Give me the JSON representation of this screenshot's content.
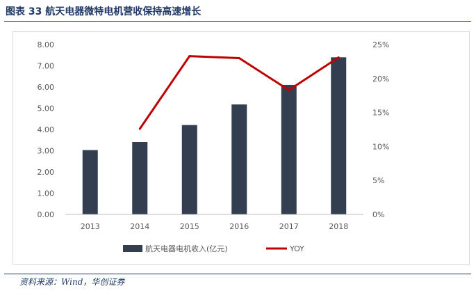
{
  "header": {
    "title": "图表 33  航天电器微特电机营收保持高速增长"
  },
  "footer": {
    "source": "资料来源：Wind，华创证券"
  },
  "chart_data": {
    "type": "bar",
    "categories": [
      "2013",
      "2014",
      "2015",
      "2016",
      "2017",
      "2018"
    ],
    "series": [
      {
        "name": "航天电器电机收入(亿元)",
        "type": "bar",
        "axis": "left",
        "values": [
          3.03,
          3.41,
          4.21,
          5.18,
          6.1,
          7.4
        ],
        "color": "#333f50"
      },
      {
        "name": "YOY",
        "type": "line",
        "axis": "right",
        "values": [
          null,
          12.6,
          23.3,
          23.0,
          18.3,
          23.1
        ],
        "color": "#c00000"
      }
    ],
    "y_left": {
      "ticks": [
        "0.00",
        "1.00",
        "2.00",
        "3.00",
        "4.00",
        "5.00",
        "6.00",
        "7.00",
        "8.00"
      ],
      "ylim": [
        0,
        8
      ]
    },
    "y_right": {
      "ticks": [
        "0%",
        "5%",
        "10%",
        "15%",
        "20%",
        "25%"
      ],
      "ylim": [
        0,
        25
      ]
    },
    "grid": false,
    "legend_position": "bottom"
  }
}
